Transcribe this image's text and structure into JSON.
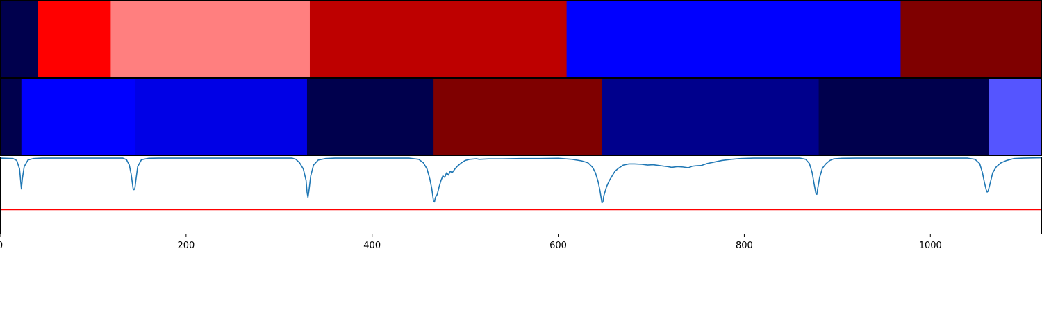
{
  "chart_data": {
    "type": "heatmap",
    "xlim": [
      0,
      1120
    ],
    "x_ticks": [
      {
        "value": 0,
        "label": "0"
      },
      {
        "value": 200,
        "label": "200"
      },
      {
        "value": 400,
        "label": "400"
      },
      {
        "value": 600,
        "label": "600"
      },
      {
        "value": 800,
        "label": "800"
      },
      {
        "value": 1000,
        "label": "1000"
      }
    ],
    "segment_rows": [
      {
        "segments": [
          {
            "start": 0,
            "end": 41,
            "color": "#00004d"
          },
          {
            "start": 41,
            "end": 119,
            "color": "#ff0000"
          },
          {
            "start": 119,
            "end": 333,
            "color": "#ff7f7f"
          },
          {
            "start": 333,
            "end": 609,
            "color": "#be0000"
          },
          {
            "start": 609,
            "end": 968,
            "color": "#0000ff"
          },
          {
            "start": 968,
            "end": 1120,
            "color": "#7f0000"
          }
        ]
      },
      {
        "segments": [
          {
            "start": 0,
            "end": 23,
            "color": "#00004d"
          },
          {
            "start": 23,
            "end": 145,
            "color": "#0000ff"
          },
          {
            "start": 145,
            "end": 330,
            "color": "#0000e6"
          },
          {
            "start": 330,
            "end": 466,
            "color": "#00004d"
          },
          {
            "start": 466,
            "end": 647,
            "color": "#7f0000"
          },
          {
            "start": 647,
            "end": 880,
            "color": "#00008c"
          },
          {
            "start": 880,
            "end": 1063,
            "color": "#00004d"
          },
          {
            "start": 1063,
            "end": 1120,
            "color": "#5555ff"
          }
        ]
      }
    ],
    "signal": {
      "color": "#1f77b4",
      "ylim": [
        0,
        1
      ],
      "baseline": 0.99,
      "points": [
        [
          0,
          0.99
        ],
        [
          14,
          0.985
        ],
        [
          18,
          0.96
        ],
        [
          21,
          0.85
        ],
        [
          22,
          0.72
        ],
        [
          23,
          0.59
        ],
        [
          24,
          0.72
        ],
        [
          26,
          0.88
        ],
        [
          30,
          0.965
        ],
        [
          36,
          0.985
        ],
        [
          45,
          0.99
        ],
        [
          132,
          0.99
        ],
        [
          136,
          0.97
        ],
        [
          139,
          0.9
        ],
        [
          141,
          0.78
        ],
        [
          143,
          0.6
        ],
        [
          144,
          0.58
        ],
        [
          145,
          0.6
        ],
        [
          146,
          0.7
        ],
        [
          148,
          0.88
        ],
        [
          152,
          0.97
        ],
        [
          160,
          0.988
        ],
        [
          170,
          0.99
        ],
        [
          314,
          0.99
        ],
        [
          318,
          0.975
        ],
        [
          322,
          0.93
        ],
        [
          326,
          0.85
        ],
        [
          329,
          0.7
        ],
        [
          330,
          0.55
        ],
        [
          331,
          0.48
        ],
        [
          332,
          0.56
        ],
        [
          334,
          0.76
        ],
        [
          337,
          0.9
        ],
        [
          342,
          0.965
        ],
        [
          350,
          0.985
        ],
        [
          360,
          0.99
        ],
        [
          440,
          0.99
        ],
        [
          450,
          0.975
        ],
        [
          455,
          0.93
        ],
        [
          459,
          0.85
        ],
        [
          462,
          0.72
        ],
        [
          464,
          0.6
        ],
        [
          466,
          0.43
        ],
        [
          467,
          0.42
        ],
        [
          468,
          0.48
        ],
        [
          470,
          0.52
        ],
        [
          472,
          0.62
        ],
        [
          474,
          0.7
        ],
        [
          476,
          0.76
        ],
        [
          478,
          0.74
        ],
        [
          480,
          0.8
        ],
        [
          482,
          0.77
        ],
        [
          484,
          0.82
        ],
        [
          486,
          0.8
        ],
        [
          489,
          0.85
        ],
        [
          492,
          0.89
        ],
        [
          496,
          0.93
        ],
        [
          500,
          0.96
        ],
        [
          505,
          0.975
        ],
        [
          512,
          0.982
        ],
        [
          515,
          0.975
        ],
        [
          525,
          0.98
        ],
        [
          540,
          0.98
        ],
        [
          560,
          0.985
        ],
        [
          580,
          0.985
        ],
        [
          600,
          0.988
        ],
        [
          615,
          0.975
        ],
        [
          625,
          0.955
        ],
        [
          632,
          0.93
        ],
        [
          637,
          0.87
        ],
        [
          640,
          0.8
        ],
        [
          643,
          0.68
        ],
        [
          645,
          0.56
        ],
        [
          647,
          0.41
        ],
        [
          648,
          0.42
        ],
        [
          649,
          0.5
        ],
        [
          652,
          0.62
        ],
        [
          655,
          0.7
        ],
        [
          658,
          0.76
        ],
        [
          661,
          0.82
        ],
        [
          665,
          0.86
        ],
        [
          670,
          0.9
        ],
        [
          676,
          0.915
        ],
        [
          682,
          0.915
        ],
        [
          690,
          0.91
        ],
        [
          696,
          0.9
        ],
        [
          702,
          0.905
        ],
        [
          708,
          0.895
        ],
        [
          714,
          0.885
        ],
        [
          718,
          0.88
        ],
        [
          722,
          0.87
        ],
        [
          728,
          0.88
        ],
        [
          734,
          0.875
        ],
        [
          740,
          0.865
        ],
        [
          744,
          0.885
        ],
        [
          748,
          0.89
        ],
        [
          754,
          0.895
        ],
        [
          760,
          0.92
        ],
        [
          768,
          0.94
        ],
        [
          776,
          0.96
        ],
        [
          786,
          0.975
        ],
        [
          796,
          0.985
        ],
        [
          810,
          0.99
        ],
        [
          860,
          0.99
        ],
        [
          866,
          0.975
        ],
        [
          870,
          0.92
        ],
        [
          873,
          0.8
        ],
        [
          875,
          0.66
        ],
        [
          877,
          0.53
        ],
        [
          878,
          0.52
        ],
        [
          879,
          0.6
        ],
        [
          881,
          0.74
        ],
        [
          884,
          0.86
        ],
        [
          888,
          0.92
        ],
        [
          892,
          0.96
        ],
        [
          896,
          0.98
        ],
        [
          905,
          0.988
        ],
        [
          920,
          0.99
        ],
        [
          1040,
          0.99
        ],
        [
          1048,
          0.975
        ],
        [
          1053,
          0.92
        ],
        [
          1056,
          0.8
        ],
        [
          1058,
          0.68
        ],
        [
          1060,
          0.58
        ],
        [
          1061,
          0.55
        ],
        [
          1062,
          0.56
        ],
        [
          1064,
          0.65
        ],
        [
          1067,
          0.8
        ],
        [
          1071,
          0.88
        ],
        [
          1076,
          0.93
        ],
        [
          1082,
          0.96
        ],
        [
          1090,
          0.985
        ],
        [
          1100,
          0.99
        ],
        [
          1120,
          0.995
        ]
      ]
    },
    "threshold": {
      "value": 0.32,
      "color": "#ff0000"
    }
  }
}
